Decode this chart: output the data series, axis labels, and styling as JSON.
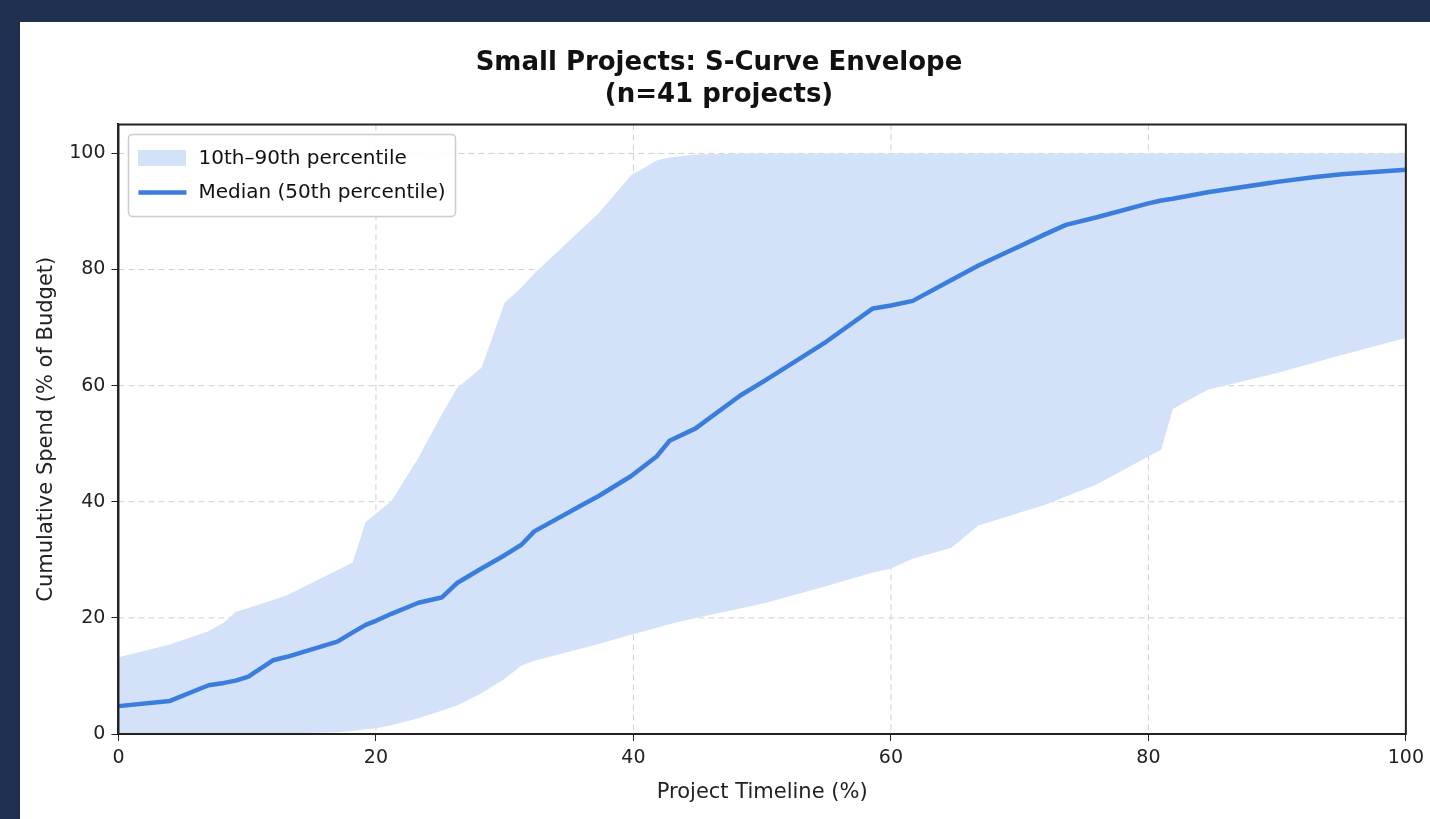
{
  "chart_data": {
    "type": "line",
    "title": "Small Projects: S-Curve Envelope",
    "subtitle": "(n=41 projects)",
    "xlabel": "Project Timeline (%)",
    "ylabel": "Cumulative Spend (% of Budget)",
    "xlim": [
      0,
      100
    ],
    "xticks": [
      0,
      20,
      40,
      60,
      80,
      100
    ],
    "ylim": [
      0,
      105
    ],
    "yticks": [
      0,
      20,
      40,
      60,
      80,
      100
    ],
    "grid": true,
    "legend": "top left",
    "annotations": [
      "10th–90th percentile"
    ],
    "series": [
      {
        "name": "Median (50th percentile)",
        "color": "#3b7ddd",
        "x": [
          0,
          4,
          7,
          8.2,
          9.1,
          10.1,
          12,
          13.1,
          17,
          18.2,
          19.2,
          20,
          21.2,
          23.3,
          25.1,
          26.3,
          28.2,
          30,
          31.3,
          32.3,
          35.9,
          37.3,
          39.8,
          41.8,
          42.8,
          44.8,
          48.3,
          50.3,
          55,
          58.6,
          60,
          61.7,
          64.7,
          66.8,
          72,
          73.6,
          76,
          80,
          81,
          81.9,
          84.6,
          90,
          92.8,
          95,
          100
        ],
        "values": [
          4.8,
          5.7,
          8.4,
          8.8,
          9.2,
          9.9,
          12.7,
          13.3,
          15.9,
          17.5,
          18.8,
          19.5,
          20.7,
          22.6,
          23.5,
          26,
          28.5,
          30.8,
          32.6,
          34.9,
          39.3,
          41,
          44.4,
          47.8,
          50.5,
          52.6,
          58.3,
          61,
          67.6,
          73.3,
          73.8,
          74.6,
          78.2,
          80.7,
          86.1,
          87.7,
          89,
          91.4,
          91.9,
          92.2,
          93.3,
          95.1,
          95.9,
          96.4,
          97.2
        ],
        "lower": [
          0,
          0,
          0,
          0,
          0,
          0,
          0.1,
          0.1,
          0.3,
          0.5,
          0.8,
          1,
          1.5,
          2.7,
          4,
          4.9,
          7,
          9.5,
          11.8,
          12.6,
          14.7,
          15.5,
          17.1,
          18.3,
          18.9,
          20,
          21.6,
          22.6,
          25.5,
          27.8,
          28.5,
          30.2,
          32.1,
          35.9,
          39.5,
          40.9,
          43,
          47.8,
          49,
          56,
          59.3,
          62.2,
          63.9,
          65.3,
          68.2
        ],
        "upper": [
          13.2,
          15.4,
          17.7,
          19.2,
          21,
          21.7,
          23.1,
          23.9,
          28.2,
          29.6,
          36.5,
          38,
          40.1,
          47.6,
          55,
          59.6,
          63.1,
          74.3,
          76.9,
          79.3,
          86.8,
          89.7,
          96.2,
          98.8,
          99.3,
          99.8,
          100,
          100,
          100,
          100,
          100,
          100,
          100,
          100,
          100,
          100,
          100,
          100,
          100,
          100,
          100,
          100,
          100,
          100,
          100
        ]
      }
    ]
  }
}
